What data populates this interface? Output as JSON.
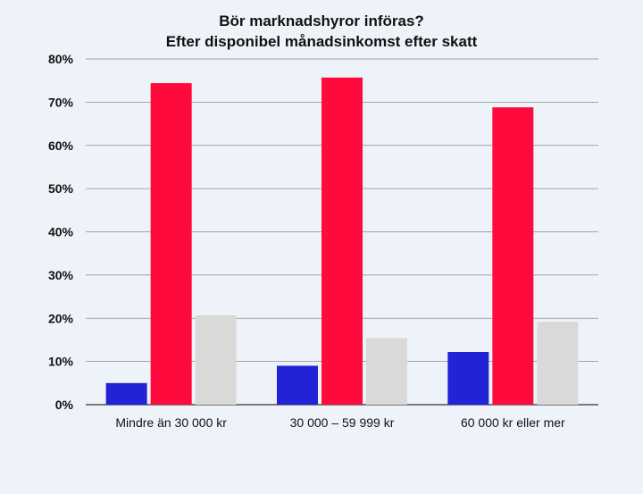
{
  "chart_data": {
    "type": "bar",
    "title": "Bör marknadshyror införas?",
    "subtitle": "Efter disponibel månadsinkomst efter skatt",
    "categories": [
      "Mindre än 30 000 kr",
      "30 000 – 59 999 kr",
      "60 000 kr eller mer"
    ],
    "series": [
      {
        "color": "#2222d6",
        "values": [
          5,
          9,
          12.2
        ]
      },
      {
        "color": "#ff0a3d",
        "values": [
          74.4,
          75.7,
          68.8
        ]
      },
      {
        "color": "#d9d9d9",
        "values": [
          20.7,
          15.4,
          19.2
        ]
      }
    ],
    "ylim": [
      0,
      80
    ],
    "yticks": [
      0,
      10,
      20,
      30,
      40,
      50,
      60,
      70,
      80
    ],
    "ytick_labels": [
      "0%",
      "10%",
      "20%",
      "30%",
      "40%",
      "50%",
      "60%",
      "70%",
      "80%"
    ],
    "grid": true,
    "xlabel": "",
    "ylabel": ""
  }
}
